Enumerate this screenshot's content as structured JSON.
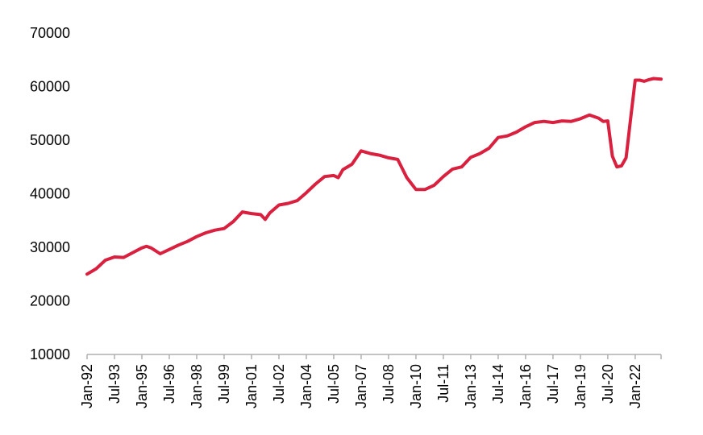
{
  "chart_data": {
    "type": "line",
    "title": "",
    "xlabel": "",
    "ylabel": "",
    "ylim": [
      10000,
      70000
    ],
    "yticks": [
      "10000",
      "20000",
      "30000",
      "40000",
      "50000",
      "60000",
      "70000"
    ],
    "xlim": [
      "1992-01",
      "2023-06"
    ],
    "xticks": [
      "Jan-92",
      "Jul-93",
      "Jan-95",
      "Jul-96",
      "Jan-98",
      "Jul-99",
      "Jan-01",
      "Jul-02",
      "Jan-04",
      "Jul-05",
      "Jan-07",
      "Jul-08",
      "Jan-10",
      "Jul-11",
      "Jan-13",
      "Jul-14",
      "Jan-16",
      "Jul-17",
      "Jan-19",
      "Jul-20",
      "Jan-22"
    ],
    "grid": false,
    "legend": "none",
    "series": [
      {
        "color": "#d9203f",
        "x": [
          "1992-01",
          "1992-07",
          "1993-01",
          "1993-07",
          "1994-01",
          "1994-07",
          "1995-01",
          "1995-04",
          "1995-07",
          "1996-01",
          "1996-07",
          "1997-01",
          "1997-07",
          "1998-01",
          "1998-07",
          "1999-01",
          "1999-07",
          "2000-01",
          "2000-07",
          "2001-01",
          "2001-07",
          "2001-10",
          "2002-01",
          "2002-07",
          "2003-01",
          "2003-07",
          "2004-01",
          "2004-07",
          "2005-01",
          "2005-07",
          "2005-10",
          "2006-01",
          "2006-07",
          "2007-01",
          "2007-07",
          "2008-01",
          "2008-07",
          "2009-01",
          "2009-07",
          "2010-01",
          "2010-07",
          "2011-01",
          "2011-07",
          "2012-01",
          "2012-07",
          "2013-01",
          "2013-07",
          "2014-01",
          "2014-07",
          "2015-01",
          "2015-07",
          "2016-01",
          "2016-07",
          "2017-01",
          "2017-07",
          "2018-01",
          "2018-07",
          "2019-01",
          "2019-07",
          "2020-01",
          "2020-04",
          "2020-07",
          "2020-10",
          "2021-01",
          "2021-04",
          "2021-07",
          "2021-10",
          "2022-01",
          "2022-04",
          "2022-07",
          "2022-10",
          "2023-01",
          "2023-06"
        ],
        "values": [
          25000,
          26000,
          27600,
          28200,
          28100,
          29000,
          29900,
          30200,
          29900,
          28800,
          29600,
          30400,
          31100,
          32000,
          32700,
          33200,
          33500,
          34800,
          36600,
          36300,
          36100,
          35200,
          36400,
          37900,
          38200,
          38700,
          40200,
          41800,
          43200,
          43400,
          43000,
          44500,
          45500,
          48000,
          47500,
          47200,
          46700,
          46400,
          43000,
          40800,
          40800,
          41600,
          43200,
          44600,
          45000,
          46800,
          47500,
          48500,
          50500,
          50800,
          51500,
          52500,
          53300,
          53500,
          53300,
          53600,
          53500,
          54000,
          54700,
          54100,
          53500,
          53600,
          47000,
          45000,
          45200,
          46700,
          54000,
          61200,
          61200,
          61000,
          61300,
          61500,
          61400
        ]
      }
    ]
  }
}
